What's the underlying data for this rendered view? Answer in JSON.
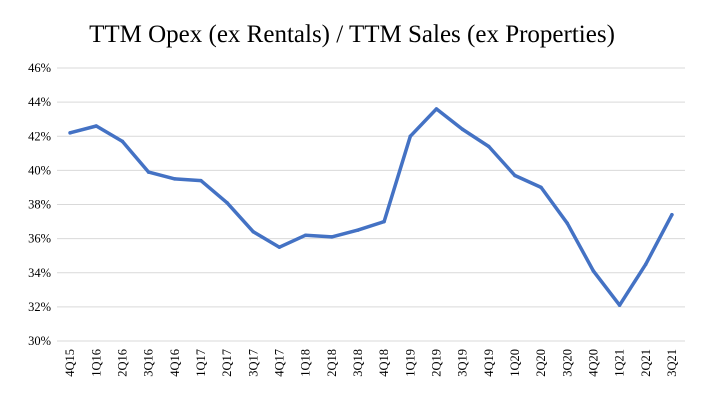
{
  "chart_data": {
    "type": "line",
    "title": "TTM Opex (ex Rentals) / TTM Sales (ex Properties)",
    "xlabel": "",
    "ylabel": "",
    "ylim": [
      30,
      46
    ],
    "y_ticks": [
      30,
      32,
      34,
      36,
      38,
      40,
      42,
      44,
      46
    ],
    "y_tick_format": "percent",
    "grid": true,
    "legend": "none",
    "categories": [
      "4Q15",
      "1Q16",
      "2Q16",
      "3Q16",
      "4Q16",
      "1Q17",
      "2Q17",
      "3Q17",
      "4Q17",
      "1Q18",
      "2Q18",
      "3Q18",
      "4Q18",
      "1Q19",
      "2Q19",
      "3Q19",
      "4Q19",
      "1Q20",
      "2Q20",
      "3Q20",
      "4Q20",
      "1Q21",
      "2Q21",
      "3Q21"
    ],
    "series": [
      {
        "color": "#4472C4",
        "values": [
          42.2,
          42.6,
          41.7,
          39.9,
          39.5,
          39.4,
          38.1,
          36.4,
          35.5,
          36.2,
          36.1,
          36.5,
          37.0,
          42.0,
          43.6,
          42.4,
          41.4,
          39.7,
          39.0,
          36.9,
          34.1,
          32.1,
          34.5,
          37.4
        ]
      }
    ]
  }
}
